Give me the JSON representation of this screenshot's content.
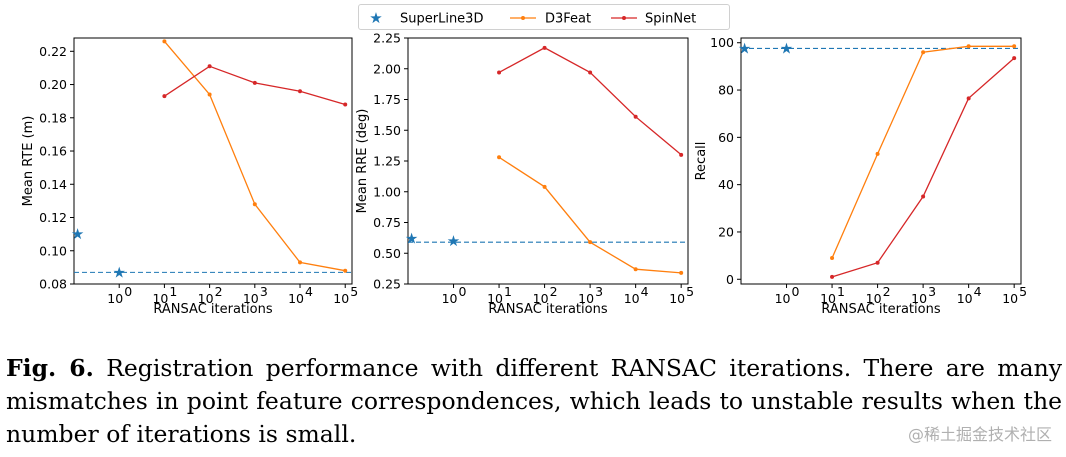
{
  "colors": {
    "superline": "#1f77b4",
    "d3feat": "#ff7f0e",
    "spinnet": "#d62728"
  },
  "chart_data": [
    {
      "type": "line",
      "ylabel": "Mean RTE (m)",
      "xlabel": "RANSAC iterations",
      "xscale": "log",
      "xticks": [
        0,
        1,
        2,
        3,
        4,
        5
      ],
      "xtick_labels": [
        "10",
        "10",
        "10",
        "10",
        "10",
        "10"
      ],
      "xtick_exponents": [
        "0",
        "1",
        "2",
        "3",
        "4",
        "5"
      ],
      "ylim": [
        0.08,
        0.228
      ],
      "yticks": [
        "0.08",
        "0.10",
        "0.12",
        "0.14",
        "0.16",
        "0.18",
        "0.20",
        "0.22"
      ],
      "ytick_values": [
        0.08,
        0.1,
        0.12,
        0.14,
        0.16,
        0.18,
        0.2,
        0.22
      ],
      "superline_points": [
        {
          "x": -0.92,
          "y": 0.11
        },
        {
          "x": 0,
          "y": 0.087
        }
      ],
      "superline_hline": 0.087,
      "series": [
        {
          "name": "D3Feat",
          "x": [
            1,
            2,
            3,
            4,
            5
          ],
          "values": [
            0.226,
            0.194,
            0.128,
            0.093,
            0.088
          ]
        },
        {
          "name": "SpinNet",
          "x": [
            1,
            2,
            3,
            4,
            5
          ],
          "values": [
            0.193,
            0.211,
            0.201,
            0.196,
            0.188
          ]
        }
      ]
    },
    {
      "type": "line",
      "ylabel": "Mean RRE (deg)",
      "xlabel": "RANSAC iterations",
      "xscale": "log",
      "xticks": [
        0,
        1,
        2,
        3,
        4,
        5
      ],
      "xtick_labels": [
        "10",
        "10",
        "10",
        "10",
        "10",
        "10"
      ],
      "xtick_exponents": [
        "0",
        "1",
        "2",
        "3",
        "4",
        "5"
      ],
      "ylim": [
        0.25,
        2.25
      ],
      "yticks": [
        "0.25",
        "0.50",
        "0.75",
        "1.00",
        "1.25",
        "1.50",
        "1.75",
        "2.00",
        "2.25"
      ],
      "ytick_values": [
        0.25,
        0.5,
        0.75,
        1.0,
        1.25,
        1.5,
        1.75,
        2.0,
        2.25
      ],
      "superline_points": [
        {
          "x": -0.92,
          "y": 0.62
        },
        {
          "x": 0,
          "y": 0.6
        }
      ],
      "superline_hline": 0.59,
      "series": [
        {
          "name": "D3Feat",
          "x": [
            1,
            2,
            3,
            4,
            5
          ],
          "values": [
            1.28,
            1.04,
            0.59,
            0.37,
            0.34
          ]
        },
        {
          "name": "SpinNet",
          "x": [
            1,
            2,
            3,
            4,
            5
          ],
          "values": [
            1.97,
            2.17,
            1.97,
            1.61,
            1.3
          ]
        }
      ]
    },
    {
      "type": "line",
      "ylabel": "Recall",
      "xlabel": "RANSAC iterations",
      "xscale": "log",
      "xticks": [
        0,
        1,
        2,
        3,
        4,
        5
      ],
      "xtick_labels": [
        "10",
        "10",
        "10",
        "10",
        "10",
        "10"
      ],
      "xtick_exponents": [
        "0",
        "1",
        "2",
        "3",
        "4",
        "5"
      ],
      "ylim": [
        -2,
        102
      ],
      "yticks": [
        "0",
        "20",
        "40",
        "60",
        "80",
        "100"
      ],
      "ytick_values": [
        0,
        20,
        40,
        60,
        80,
        100
      ],
      "superline_points": [
        {
          "x": -0.92,
          "y": 97.6
        },
        {
          "x": 0,
          "y": 97.6
        }
      ],
      "superline_hline": 97.6,
      "series": [
        {
          "name": "D3Feat",
          "x": [
            1,
            2,
            3,
            4,
            5
          ],
          "values": [
            9,
            53,
            96,
            98.5,
            98.5
          ]
        },
        {
          "name": "SpinNet",
          "x": [
            1,
            2,
            3,
            4,
            5
          ],
          "values": [
            1,
            7,
            35,
            76.5,
            93.5
          ]
        }
      ]
    }
  ],
  "legend": {
    "entries": [
      "SuperLine3D",
      "D3Feat",
      "SpinNet"
    ]
  },
  "caption": {
    "label": "Fig. 6.",
    "text": " Registration performance with different RANSAC iterations. There are many mismatches in point feature correspondences, which leads to unstable results when the number of iterations is small."
  },
  "watermark": "@稀土掘金技术社区"
}
